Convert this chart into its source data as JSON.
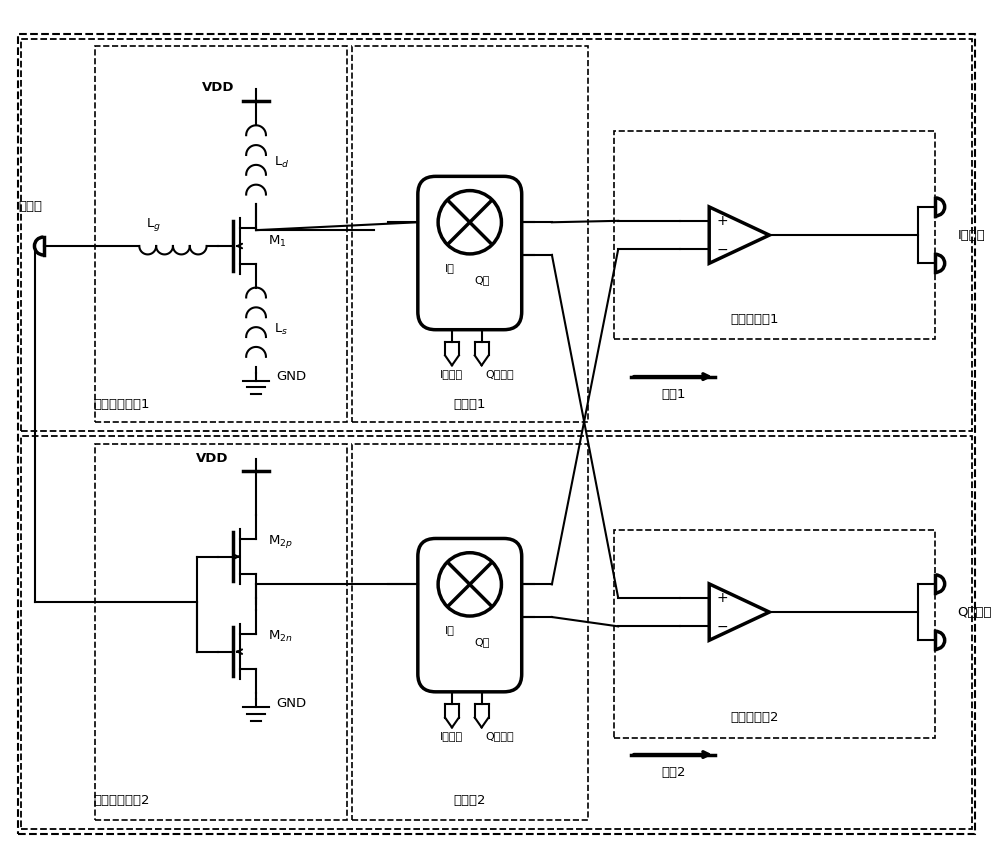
{
  "bg_color": "#ffffff",
  "lc": "#000000",
  "figsize": [
    10.0,
    8.66
  ],
  "dpi": 100,
  "labels": {
    "input": "输入端",
    "lna1": "低噪声放大全1",
    "lna2": "低噪声放大全2",
    "mixer1": "混频全1",
    "mixer2": "混频全2",
    "tia1": "跨阻放大全1",
    "tia2": "跨阻放大全2",
    "branch1": "支路1",
    "branch2": "支路2",
    "i_out": "I路输出",
    "q_out": "Q路输出",
    "vdd": "VDD",
    "gnd": "GND",
    "Lg": "Lg",
    "Ld": "Ld",
    "Ls": "Ls",
    "M1": "M1",
    "M2p": "M2p",
    "M2n": "M2n",
    "I_path": "I路",
    "Q_path": "Q路",
    "I_lo": "I路本振",
    "Q_lo": "Q路本振",
    "plus": "+",
    "minus": "−"
  }
}
